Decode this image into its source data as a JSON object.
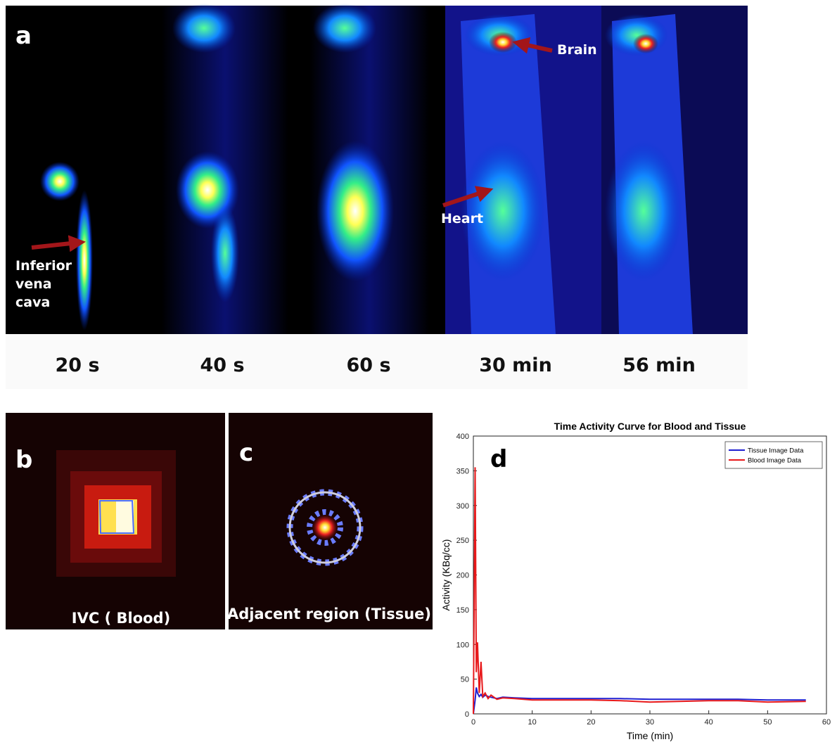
{
  "panel_a": {
    "label": "a",
    "annotations": {
      "ivc": [
        "Inferior",
        "vena",
        "cava"
      ],
      "brain": "Brain",
      "heart": "Heart"
    },
    "times": [
      "20 s",
      "40 s",
      "60 s",
      "30 min",
      "56 min"
    ]
  },
  "panel_b": {
    "label": "b",
    "caption": "IVC ( Blood)"
  },
  "panel_c": {
    "label": "c",
    "caption": "Adjacent region (Tissue)"
  },
  "panel_d": {
    "label": "d"
  },
  "chart_data": {
    "type": "line",
    "title": "Time Activity Curve for Blood and Tissue",
    "x_label": "Time (min)",
    "y_label": "Activity (KBq/cc)",
    "x": [
      0,
      0.3,
      0.5,
      0.7,
      1,
      1.3,
      1.6,
      2,
      2.5,
      3,
      4,
      5,
      7,
      10,
      15,
      20,
      25,
      30,
      35,
      40,
      45,
      50,
      56.5
    ],
    "series": [
      {
        "name": "Tissue Image Data",
        "color": "#1f1fd0",
        "values": [
          0,
          20,
          38,
          30,
          25,
          28,
          24,
          27,
          25,
          24,
          22,
          24,
          23,
          22,
          22,
          22,
          22,
          21,
          21,
          21,
          21,
          20,
          20
        ]
      },
      {
        "name": "Blood Image Data",
        "color": "#e8191b",
        "values": [
          0,
          355,
          60,
          103,
          30,
          75,
          25,
          30,
          22,
          27,
          21,
          23,
          22,
          20,
          20,
          20,
          19,
          17,
          18,
          19,
          19,
          17,
          18
        ]
      }
    ],
    "xlim": [
      0,
      60
    ],
    "xticks": [
      0,
      10,
      20,
      30,
      40,
      50,
      60
    ],
    "ylim": [
      0,
      400
    ],
    "yticks": [
      0,
      50,
      100,
      150,
      200,
      250,
      300,
      350,
      400
    ],
    "legend": "upper right",
    "grid": false
  }
}
